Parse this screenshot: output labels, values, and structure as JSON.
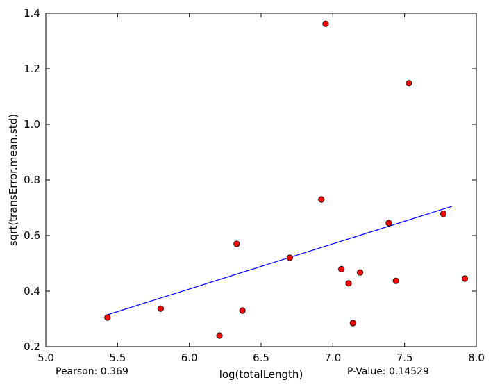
{
  "chart_data": {
    "type": "scatter",
    "xlabel": "log(totalLength)",
    "ylabel": "sqrt(transError.mean.std)",
    "xlim": [
      5.0,
      8.0
    ],
    "ylim": [
      0.2,
      1.4
    ],
    "x_ticks": [
      "5.0",
      "5.5",
      "6.0",
      "6.5",
      "7.0",
      "7.5",
      "8.0"
    ],
    "y_ticks": [
      "0.2",
      "0.4",
      "0.6",
      "0.8",
      "1.0",
      "1.2",
      "1.4"
    ],
    "grid": false,
    "points": [
      {
        "x": 5.43,
        "y": 0.305
      },
      {
        "x": 5.8,
        "y": 0.337
      },
      {
        "x": 6.21,
        "y": 0.24
      },
      {
        "x": 6.33,
        "y": 0.57
      },
      {
        "x": 6.37,
        "y": 0.33
      },
      {
        "x": 6.7,
        "y": 0.52
      },
      {
        "x": 6.92,
        "y": 0.73
      },
      {
        "x": 6.95,
        "y": 1.362
      },
      {
        "x": 7.06,
        "y": 0.479
      },
      {
        "x": 7.11,
        "y": 0.428
      },
      {
        "x": 7.14,
        "y": 0.285
      },
      {
        "x": 7.19,
        "y": 0.467
      },
      {
        "x": 7.39,
        "y": 0.645
      },
      {
        "x": 7.44,
        "y": 0.437
      },
      {
        "x": 7.53,
        "y": 1.148
      },
      {
        "x": 7.77,
        "y": 0.678
      },
      {
        "x": 7.92,
        "y": 0.445
      }
    ],
    "fit_line": {
      "x": [
        5.43,
        7.83
      ],
      "y": [
        0.315,
        0.705
      ]
    },
    "point_color": "#ff0000",
    "line_color": "#0000ff"
  },
  "stats": {
    "pearson": "Pearson: 0.369",
    "pvalue": "P-Value: 0.14529"
  }
}
